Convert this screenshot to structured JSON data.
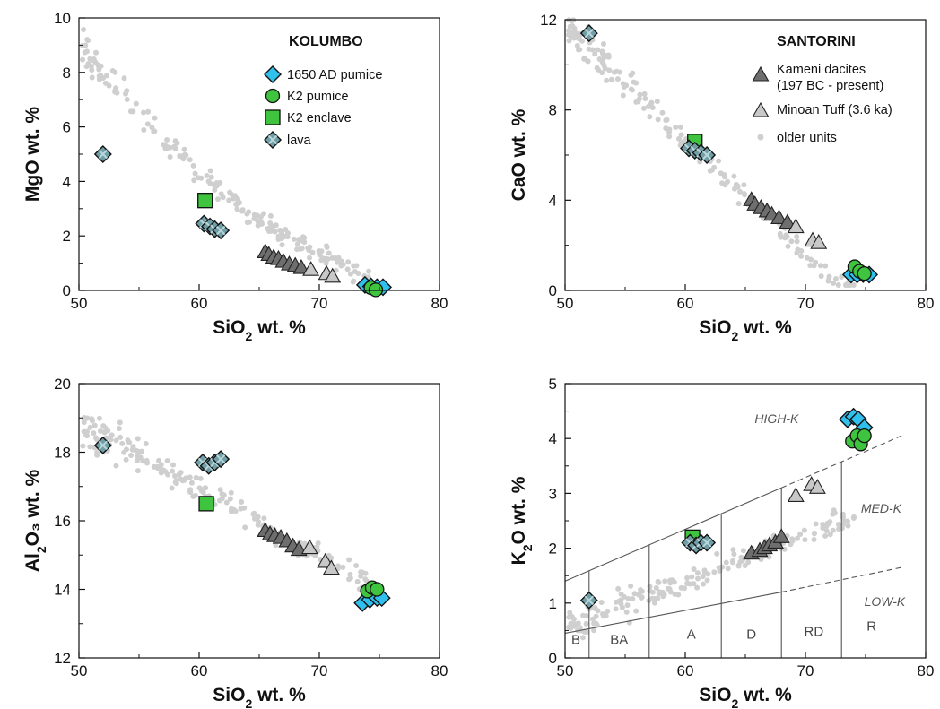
{
  "colors": {
    "kameni": "#6e6e6e",
    "minoan": "#c8c8c8",
    "older": "#cfcfcf",
    "pumice1650": "#30c0ee",
    "k2": "#3ec43e",
    "lava": "#6f9ea6"
  },
  "chart_data": [
    {
      "type": "scatter",
      "xlabel": "SiO₂ wt. %",
      "ylabel": "MgO wt. %",
      "xlim": [
        50,
        80
      ],
      "ylim": [
        0,
        10
      ],
      "xticks": [
        "50",
        "60",
        "70",
        "80"
      ],
      "yticks": [
        "0",
        "2",
        "4",
        "6",
        "8",
        "10"
      ],
      "legend": {
        "title": "KOLUMBO",
        "entries": [
          "1650 AD pumice",
          "K2 pumice",
          "K2 enclave",
          "lava"
        ]
      },
      "series": {
        "kameni": [
          [
            65.5,
            1.4
          ],
          [
            65.8,
            1.3
          ],
          [
            66.2,
            1.2
          ],
          [
            66.6,
            1.15
          ],
          [
            67.0,
            1.05
          ],
          [
            67.5,
            0.95
          ],
          [
            68.0,
            0.9
          ],
          [
            68.5,
            0.82
          ]
        ],
        "minoan": [
          [
            69.3,
            0.75
          ],
          [
            70.6,
            0.6
          ],
          [
            71.1,
            0.5
          ]
        ],
        "k2_enclave": [
          [
            60.5,
            3.3
          ]
        ],
        "lava": [
          [
            52.0,
            5.0
          ],
          [
            60.4,
            2.45
          ],
          [
            60.9,
            2.35
          ],
          [
            61.3,
            2.25
          ],
          [
            61.8,
            2.2
          ]
        ],
        "pumice_1650": [
          [
            73.8,
            0.2
          ],
          [
            74.3,
            0.15
          ],
          [
            74.8,
            0.12
          ],
          [
            75.3,
            0.12
          ]
        ],
        "k2_pumice": [
          [
            74.3,
            0.1
          ],
          [
            74.7,
            0.02
          ]
        ]
      }
    },
    {
      "type": "scatter",
      "xlabel": "SiO₂ wt. %",
      "ylabel": "CaO wt. %",
      "xlim": [
        50,
        80
      ],
      "ylim": [
        0,
        12
      ],
      "xticks": [
        "50",
        "60",
        "70",
        "80"
      ],
      "yticks": [
        "0",
        "4",
        "8",
        "12"
      ],
      "legend": {
        "title": "SANTORINI",
        "entries": [
          "Kameni dacites",
          "(197 BC - present)",
          "Minoan Tuff (3.6 ka)",
          "older units"
        ]
      },
      "series": {
        "kameni": [
          [
            65.5,
            4.0
          ],
          [
            65.8,
            3.8
          ],
          [
            66.3,
            3.65
          ],
          [
            66.8,
            3.5
          ],
          [
            67.2,
            3.35
          ],
          [
            67.8,
            3.2
          ],
          [
            68.5,
            3.0
          ]
        ],
        "minoan": [
          [
            69.2,
            2.8
          ],
          [
            70.6,
            2.2
          ],
          [
            71.1,
            2.1
          ]
        ],
        "k2_enclave": [
          [
            60.8,
            6.6
          ]
        ],
        "lava": [
          [
            52.0,
            11.4
          ],
          [
            60.3,
            6.3
          ],
          [
            60.8,
            6.2
          ],
          [
            61.3,
            6.1
          ],
          [
            61.8,
            6.0
          ]
        ],
        "pumice_1650": [
          [
            73.8,
            0.7
          ],
          [
            74.3,
            0.7
          ],
          [
            74.8,
            0.72
          ],
          [
            75.3,
            0.7
          ]
        ],
        "k2_pumice": [
          [
            74.1,
            1.05
          ],
          [
            74.5,
            0.85
          ],
          [
            74.9,
            0.75
          ]
        ]
      }
    },
    {
      "type": "scatter",
      "xlabel": "SiO₂ wt. %",
      "ylabel": "Al₂O₃ wt. %",
      "xlim": [
        50,
        80
      ],
      "ylim": [
        12,
        20
      ],
      "xticks": [
        "50",
        "60",
        "70",
        "80"
      ],
      "yticks": [
        "12",
        "14",
        "16",
        "18",
        "20"
      ],
      "series": {
        "kameni": [
          [
            65.5,
            15.7
          ],
          [
            65.9,
            15.6
          ],
          [
            66.3,
            15.55
          ],
          [
            66.8,
            15.5
          ],
          [
            67.3,
            15.4
          ],
          [
            67.8,
            15.25
          ],
          [
            68.3,
            15.15
          ]
        ],
        "minoan": [
          [
            69.2,
            15.2
          ],
          [
            70.5,
            14.8
          ],
          [
            71.0,
            14.6
          ]
        ],
        "k2_enclave": [
          [
            60.6,
            16.5
          ]
        ],
        "lava": [
          [
            52.0,
            18.2
          ],
          [
            60.3,
            17.7
          ],
          [
            60.8,
            17.6
          ],
          [
            61.3,
            17.7
          ],
          [
            61.8,
            17.8
          ]
        ],
        "pumice_1650": [
          [
            73.6,
            13.6
          ],
          [
            74.2,
            13.7
          ],
          [
            74.8,
            13.75
          ],
          [
            75.2,
            13.75
          ]
        ],
        "k2_pumice": [
          [
            74.0,
            13.95
          ],
          [
            74.4,
            14.05
          ],
          [
            74.8,
            14.0
          ]
        ]
      }
    },
    {
      "type": "scatter",
      "xlabel": "SiO₂ wt. %",
      "ylabel": "K₂O wt. %",
      "xlim": [
        50,
        80
      ],
      "ylim": [
        0,
        5
      ],
      "xticks": [
        "50",
        "60",
        "70",
        "80"
      ],
      "yticks": [
        "0",
        "1",
        "2",
        "3",
        "4",
        "5"
      ],
      "field_labels": [
        "HIGH-K",
        "MED-K",
        "LOW-K"
      ],
      "rock_zones": [
        "B",
        "BA",
        "A",
        "D",
        "RD",
        "R"
      ],
      "boundaries": {
        "high_k_line": [
          [
            50,
            1.4
          ],
          [
            68,
            3.1
          ]
        ],
        "high_k_dashed": [
          [
            68,
            3.1
          ],
          [
            78,
            4.05
          ]
        ],
        "low_k_line": [
          [
            50,
            0.45
          ],
          [
            68,
            1.2
          ]
        ],
        "low_k_dashed": [
          [
            68,
            1.2
          ],
          [
            78,
            1.65
          ]
        ],
        "verticals": [
          52,
          57,
          63,
          68,
          73
        ]
      },
      "series": {
        "kameni": [
          [
            65.5,
            1.9
          ],
          [
            66.2,
            1.95
          ],
          [
            66.6,
            2.0
          ],
          [
            67.0,
            2.05
          ],
          [
            67.5,
            2.1
          ],
          [
            68.0,
            2.2
          ]
        ],
        "minoan": [
          [
            69.2,
            2.95
          ],
          [
            70.5,
            3.15
          ],
          [
            71.0,
            3.1
          ]
        ],
        "k2_enclave": [
          [
            60.6,
            2.2
          ]
        ],
        "lava": [
          [
            52.0,
            1.05
          ],
          [
            60.4,
            2.1
          ],
          [
            60.9,
            2.05
          ],
          [
            61.3,
            2.1
          ],
          [
            61.8,
            2.1
          ]
        ],
        "pumice_1650": [
          [
            73.5,
            4.35
          ],
          [
            74.0,
            4.4
          ],
          [
            74.4,
            4.35
          ],
          [
            74.9,
            4.2
          ]
        ],
        "k2_pumice": [
          [
            73.9,
            3.95
          ],
          [
            74.3,
            4.05
          ],
          [
            74.6,
            3.9
          ],
          [
            74.9,
            4.05
          ]
        ]
      }
    }
  ]
}
